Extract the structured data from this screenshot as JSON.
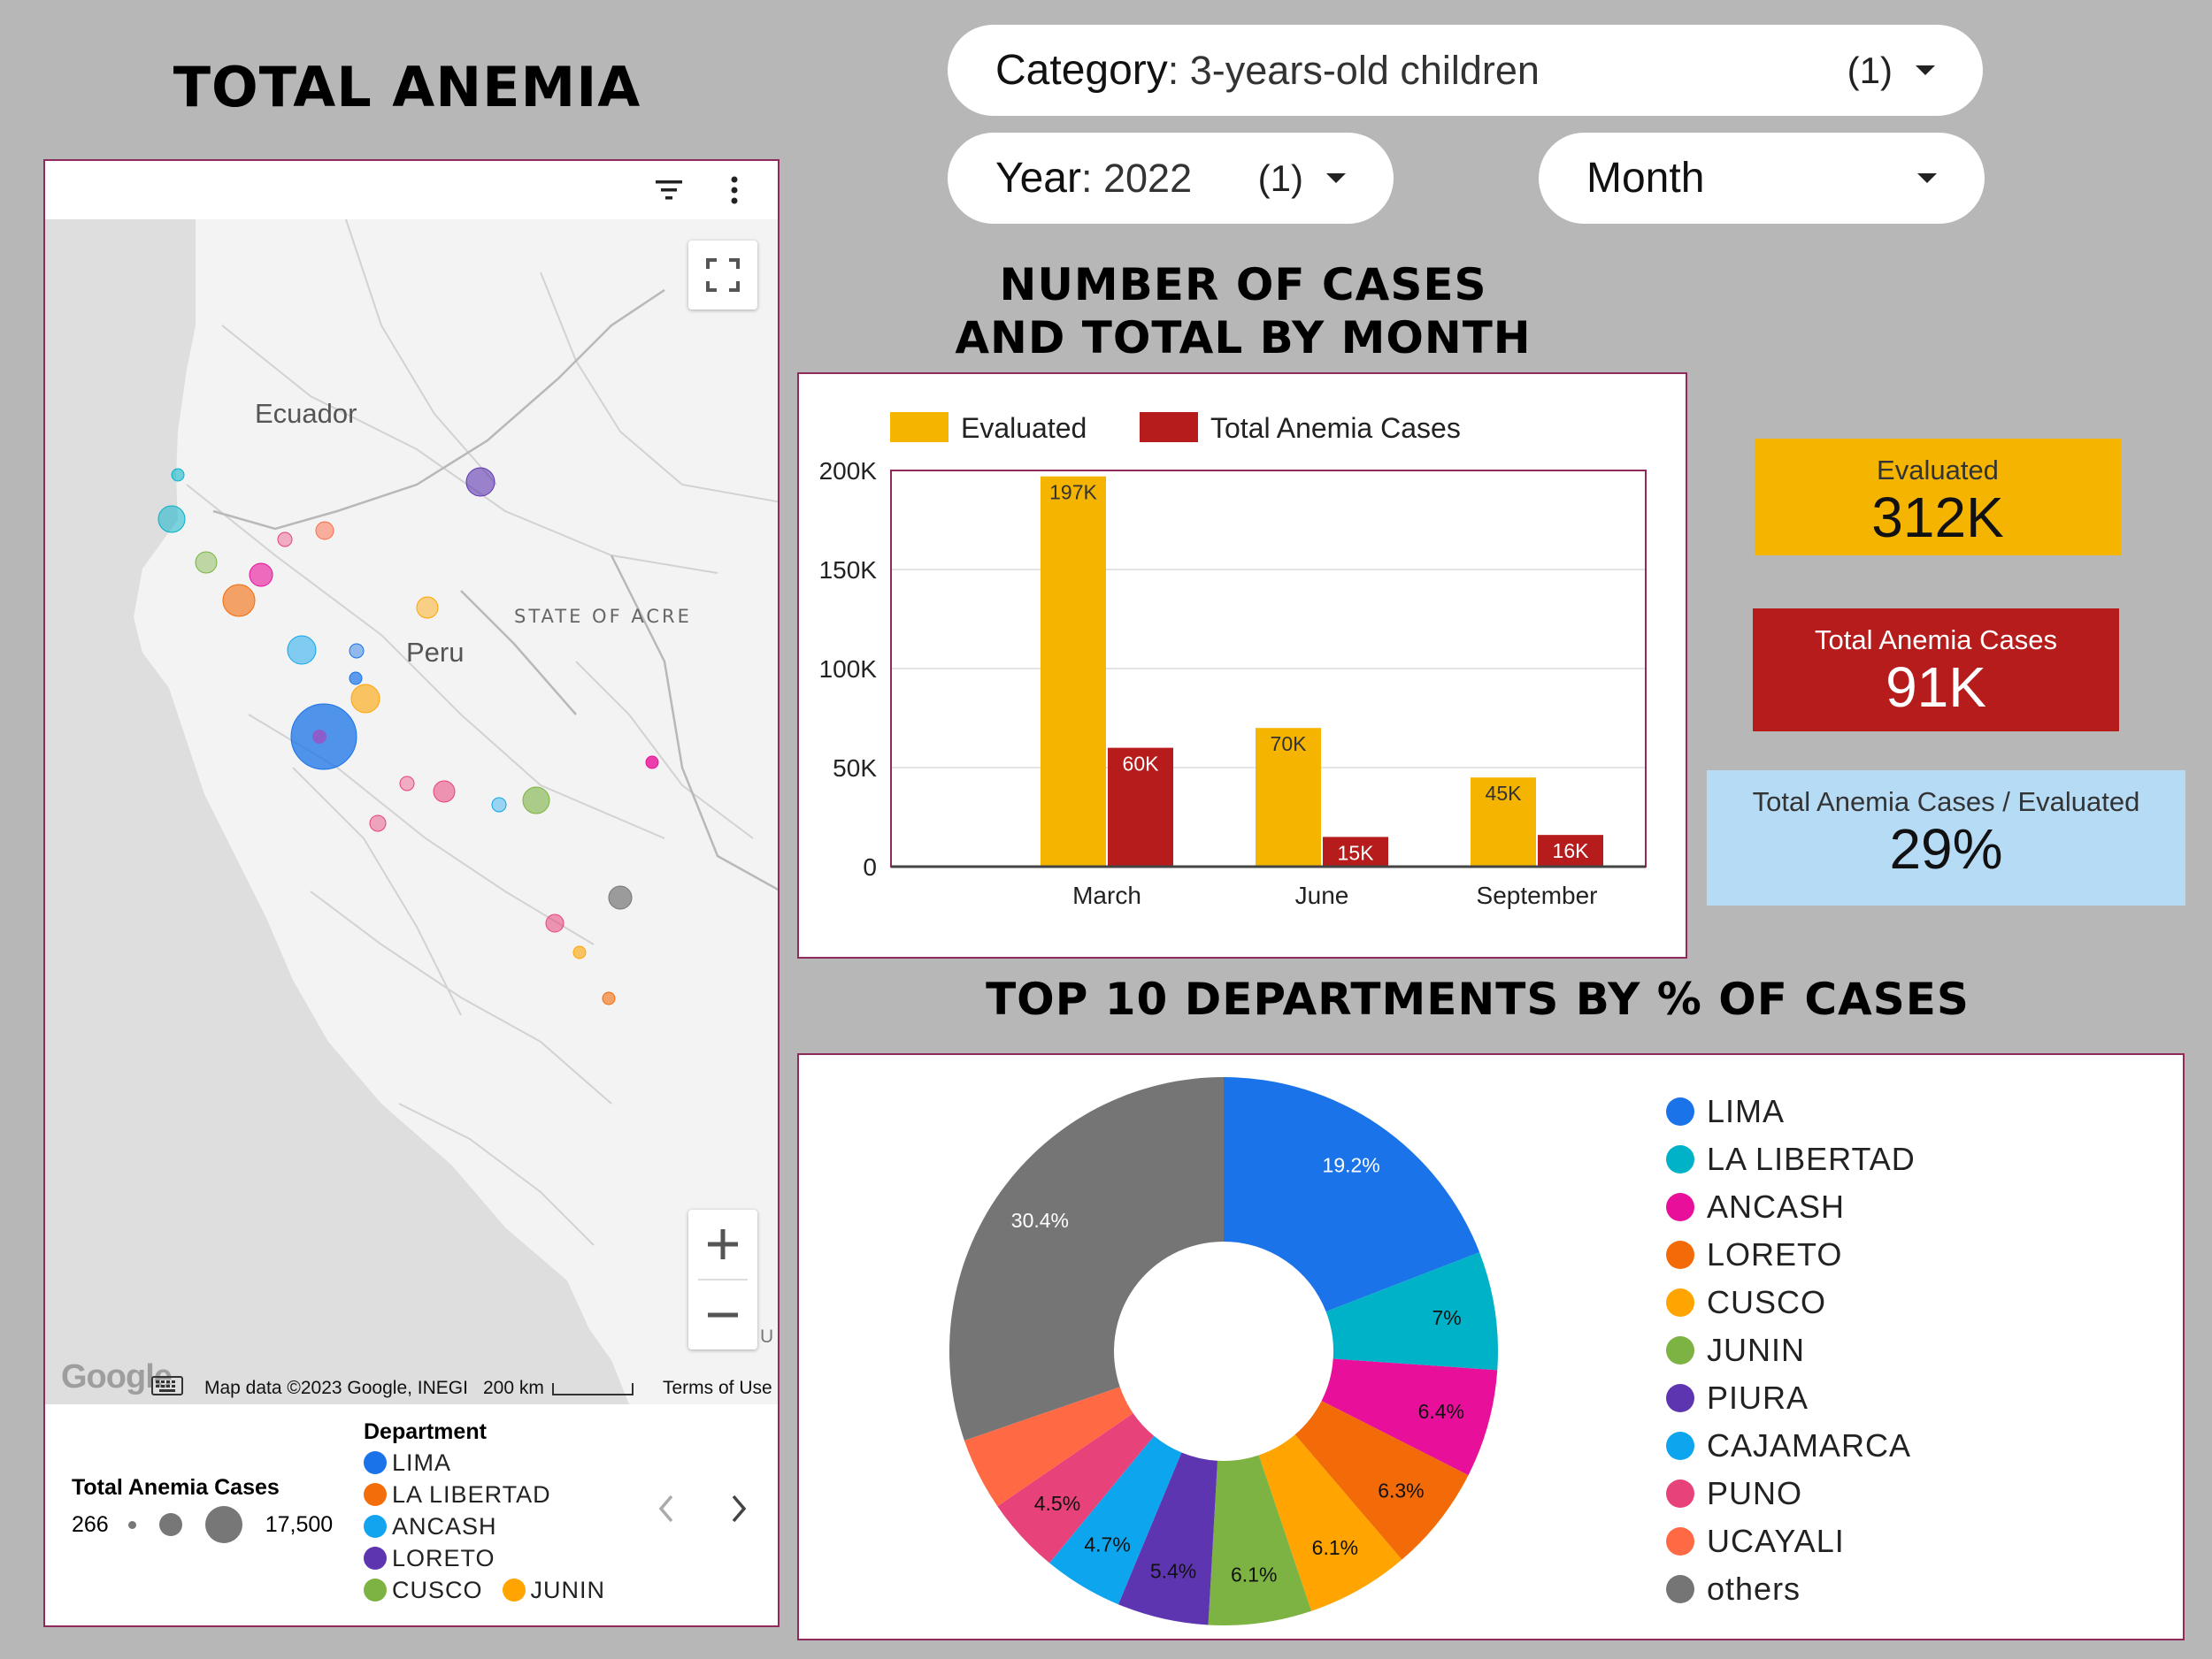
{
  "page": {
    "title": "TOTAL ANEMIA"
  },
  "filters": {
    "category": {
      "label": "Category",
      "value": ": 3-years-old children",
      "count": "(1)"
    },
    "year": {
      "label": "Year",
      "value": ": 2022",
      "count": "(1)"
    },
    "month": {
      "label": "Month"
    }
  },
  "bar_section": {
    "title_line1": "NUMBER OF CASES",
    "title_line2": "AND TOTAL BY MONTH"
  },
  "pie_section": {
    "title": "TOP 10 DEPARTMENTS BY % OF CASES"
  },
  "kpis": {
    "evaluated": {
      "label": "Evaluated",
      "value": "312K",
      "color": "#f4b400"
    },
    "cases": {
      "label": "Total Anemia Cases",
      "value": "91K",
      "color": "#b71c1c"
    },
    "ratio": {
      "label": "Total Anemia Cases / Evaluated",
      "value": "29%",
      "color": "#b6dbf5"
    }
  },
  "map": {
    "labels": {
      "ecuador": "Ecuador",
      "acre": "STATE OF ACRE",
      "peru": "Peru",
      "edge": "U"
    },
    "footer": {
      "google": "Google",
      "map_data": "Map data ©2023 Google, INEGI",
      "scale": "200 km",
      "terms": "Terms of Use"
    },
    "icons": [
      "filter-icon",
      "more-vert-icon",
      "fullscreen-icon",
      "zoom-in-icon",
      "zoom-out-icon",
      "keyboard-icon"
    ],
    "legend": {
      "size_title": "Total Anemia Cases",
      "size_min": "266",
      "size_max": "17,500",
      "dept_title": "Department",
      "items": [
        {
          "name": "LIMA",
          "color": "#1a73e8"
        },
        {
          "name": "LA LIBERTAD",
          "color": "#f46d0b"
        },
        {
          "name": "ANCASH",
          "color": "#12a4ef"
        },
        {
          "name": "LORETO",
          "color": "#5e35b1"
        },
        {
          "name": "CUSCO",
          "color": "#7cb342"
        },
        {
          "name": "JUNIN",
          "color": "#ffa400"
        }
      ]
    }
  },
  "chart_data": [
    {
      "type": "bar",
      "categories": [
        "March",
        "June",
        "September"
      ],
      "series": [
        {
          "name": "Evaluated",
          "values": [
            197000,
            70000,
            45000
          ],
          "labels": [
            "197K",
            "70K",
            "45K"
          ],
          "color": "#f4b400"
        },
        {
          "name": "Total Anemia Cases",
          "values": [
            60000,
            15000,
            16000
          ],
          "labels": [
            "60K",
            "15K",
            "16K"
          ],
          "color": "#b71c1c"
        }
      ],
      "ylim": [
        0,
        200000
      ],
      "yticks": [
        0,
        50000,
        100000,
        150000,
        200000
      ],
      "yticklabels": [
        "0",
        "50K",
        "100K",
        "150K",
        "200K"
      ],
      "grid": true,
      "legend": "top"
    },
    {
      "type": "pie",
      "donut": true,
      "labels": [
        "LIMA",
        "LA LIBERTAD",
        "ANCASH",
        "LORETO",
        "CUSCO",
        "JUNIN",
        "PIURA",
        "CAJAMARCA",
        "PUNO",
        "UCAYALI",
        "others"
      ],
      "values": [
        19.2,
        7,
        6.4,
        6.3,
        6.1,
        6.1,
        5.4,
        4.7,
        4.5,
        4.3,
        30.4
      ],
      "value_labels": [
        "19.2%",
        "7%",
        "6.4%",
        "6.3%",
        "6.1%",
        "6.1%",
        "5.4%",
        "4.7%",
        "4.5%",
        "",
        "30.4%"
      ],
      "colors": [
        "#1a73e8",
        "#00b2c8",
        "#e8109a",
        "#f36b09",
        "#ffa400",
        "#7cb342",
        "#5e35b1",
        "#0ea5ef",
        "#e8427a",
        "#ff6a45",
        "#757575"
      ],
      "legend": "right"
    }
  ]
}
